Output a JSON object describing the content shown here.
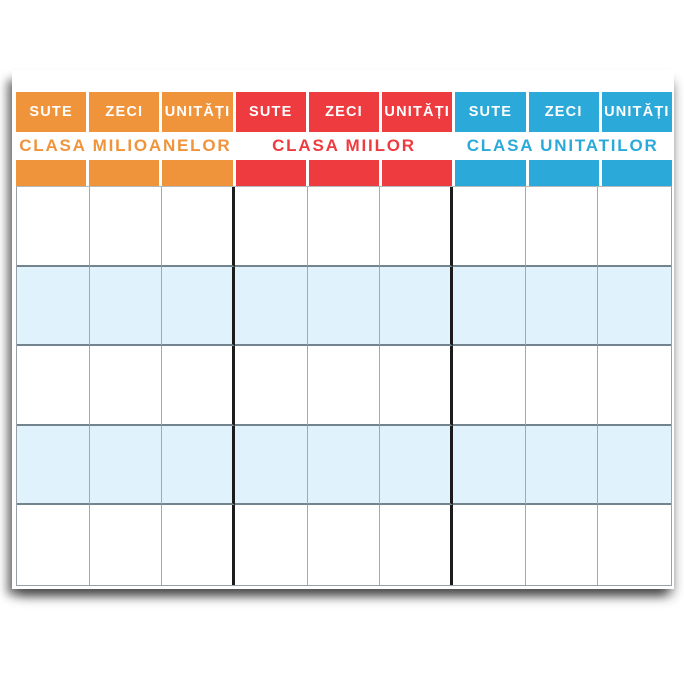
{
  "table": {
    "groups": [
      {
        "id": "milioane",
        "label": "CLASA MILIOANELOR",
        "color": "#F0943C",
        "columns": [
          "SUTE",
          "ZECI",
          "UNITĂȚI"
        ]
      },
      {
        "id": "mii",
        "label": "CLASA MIILOR",
        "color": "#EE3B40",
        "columns": [
          "SUTE",
          "ZECI",
          "UNITĂȚI"
        ]
      },
      {
        "id": "unitati",
        "label": "CLASA UNITATILOR",
        "color": "#2BAAD9",
        "columns": [
          "SUTE",
          "ZECI",
          "UNITĂȚI"
        ]
      }
    ],
    "grid": {
      "rows": 5,
      "columns": 9,
      "alt_row_color": "#E0F2FB",
      "cell_values": [
        [
          "",
          "",
          "",
          "",
          "",
          "",
          "",
          "",
          ""
        ],
        [
          "",
          "",
          "",
          "",
          "",
          "",
          "",
          "",
          ""
        ],
        [
          "",
          "",
          "",
          "",
          "",
          "",
          "",
          "",
          ""
        ],
        [
          "",
          "",
          "",
          "",
          "",
          "",
          "",
          "",
          ""
        ],
        [
          "",
          "",
          "",
          "",
          "",
          "",
          "",
          "",
          ""
        ]
      ]
    }
  }
}
